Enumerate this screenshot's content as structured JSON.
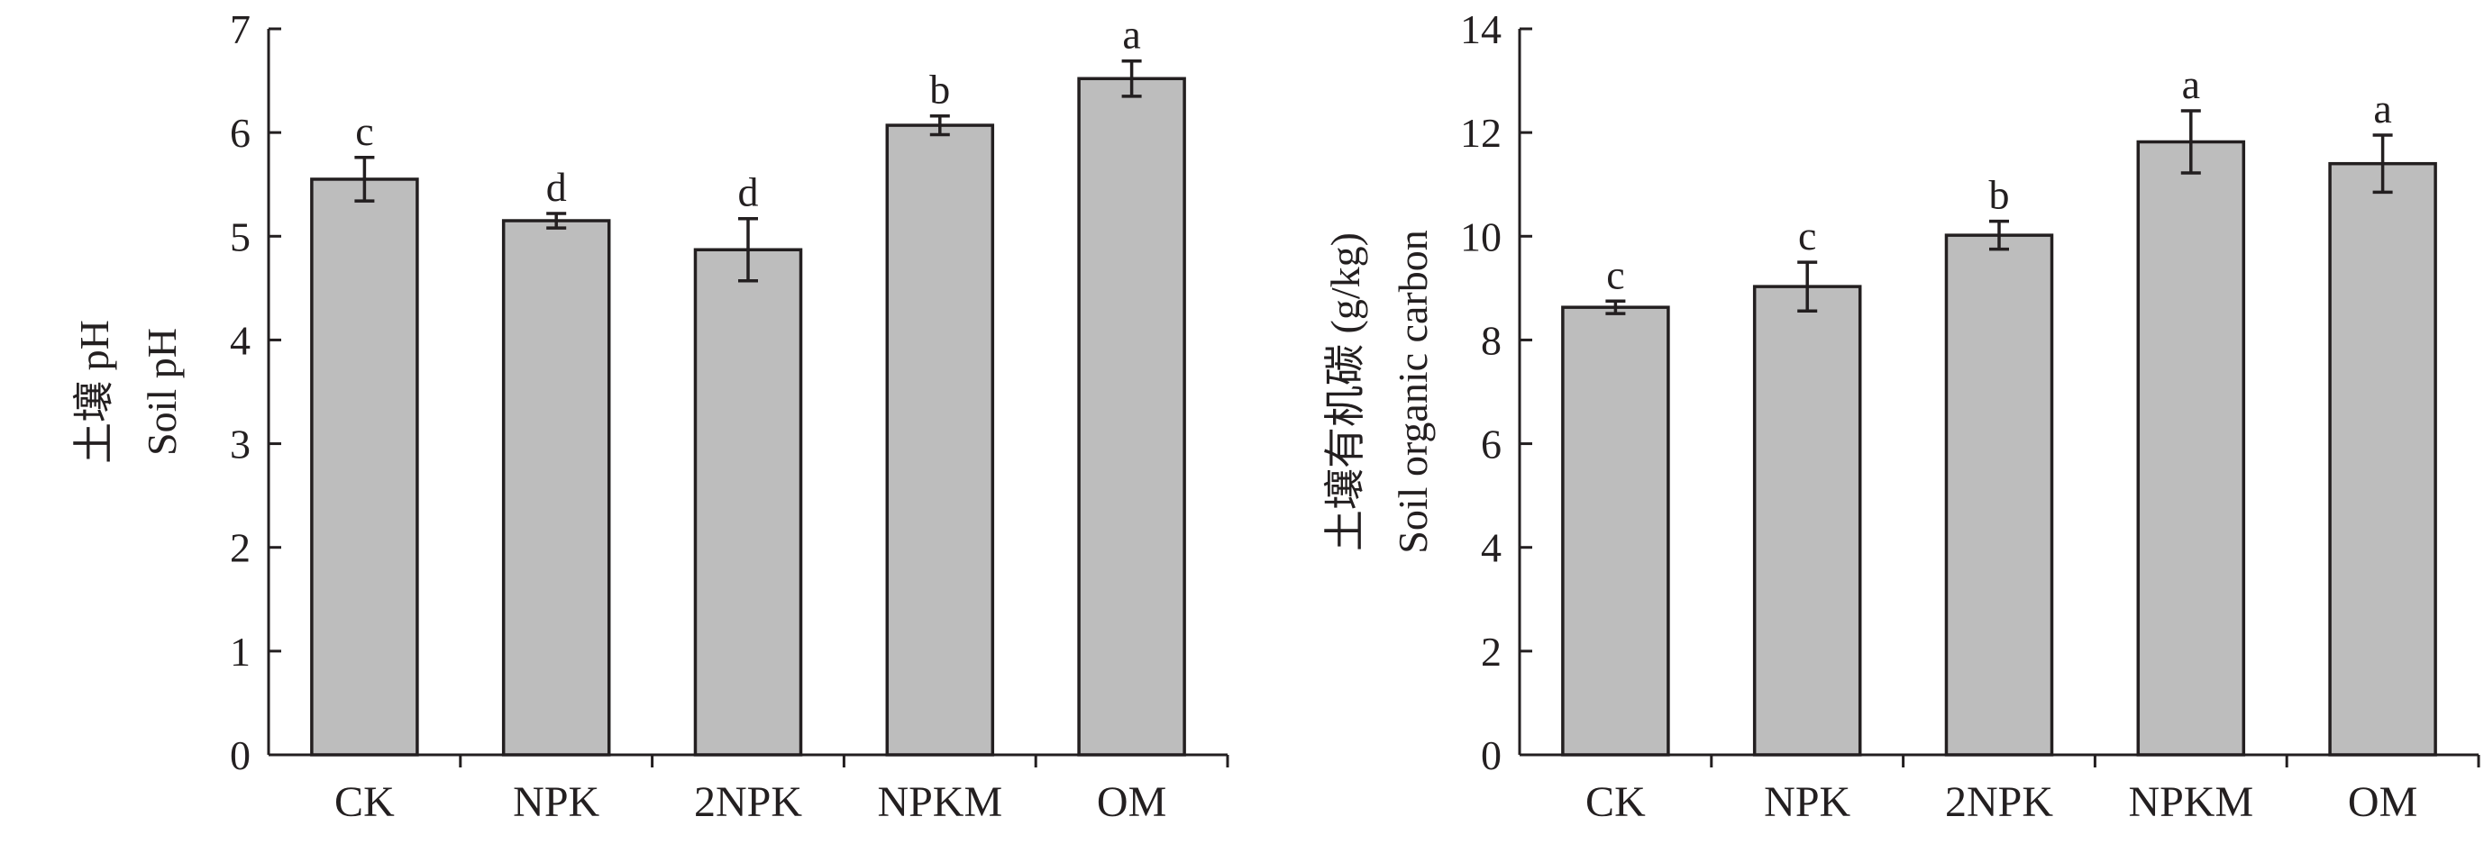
{
  "colors": {
    "bar_fill": "#bdbdbd",
    "ink": "#231f20"
  },
  "chart_data": [
    {
      "type": "bar",
      "title": "",
      "xlabel": "",
      "ylabel_lines": [
        "土壤 pH",
        "Soil pH"
      ],
      "categories": [
        "CK",
        "NPK",
        "2NPK",
        "NPKM",
        "OM"
      ],
      "values": [
        5.55,
        5.15,
        4.87,
        6.07,
        6.52
      ],
      "errors": [
        0.21,
        0.07,
        0.3,
        0.09,
        0.17
      ],
      "significance": [
        "c",
        "d",
        "d",
        "b",
        "a"
      ],
      "ylim": [
        0,
        7
      ],
      "yticks": [
        0,
        1,
        2,
        3,
        4,
        5,
        6,
        7
      ],
      "grid": false,
      "legend": "none"
    },
    {
      "type": "bar",
      "title": "",
      "xlabel": "",
      "ylabel_lines": [
        "土壤有机碳 (g/kg)",
        "Soil organic carbon"
      ],
      "categories": [
        "CK",
        "NPK",
        "2NPK",
        "NPKM",
        "OM"
      ],
      "values": [
        8.63,
        9.03,
        10.02,
        11.82,
        11.4
      ],
      "errors": [
        0.12,
        0.47,
        0.27,
        0.6,
        0.55
      ],
      "significance": [
        "c",
        "c",
        "b",
        "a",
        "a"
      ],
      "ylim": [
        0,
        14
      ],
      "yticks": [
        0,
        2,
        4,
        6,
        8,
        10,
        12,
        14
      ],
      "grid": false,
      "legend": "none"
    }
  ]
}
